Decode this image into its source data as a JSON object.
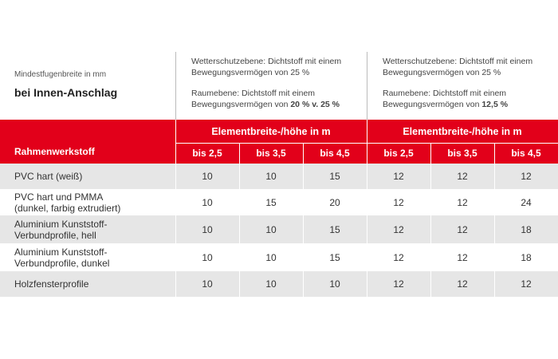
{
  "header": {
    "caption": "Mindestfugenbreite in mm",
    "title": "bei Innen-Anschlag"
  },
  "groups": [
    {
      "line1": "Wetterschutzebene: Dichtstoff mit einem Bewegungsvermögen von 25 %",
      "line2": "Raumebene: Dichtstoff mit einem Bewegungsvermögen von",
      "line2_bold": "20 % v. 25 %",
      "heading": "Elementbreite-/höhe in m",
      "columns": [
        "bis 2,5",
        "bis 3,5",
        "bis 4,5"
      ]
    },
    {
      "line1": "Wetterschutzebene: Dichtstoff mit einem Bewegungsvermögen von 25 %",
      "line2": "Raumebene: Dichtstoff mit einem Bewegungsvermögen von",
      "line2_bold": "12,5 %",
      "heading": "Elementbreite-/höhe in m",
      "columns": [
        "bis 2,5",
        "bis 3,5",
        "bis 4,5"
      ]
    }
  ],
  "table": {
    "label_header": "Rahmenwerkstoff",
    "rows": [
      {
        "label": [
          "PVC hart (weiß)"
        ],
        "values": [
          10,
          10,
          15,
          12,
          12,
          12
        ]
      },
      {
        "label": [
          "PVC hart und PMMA",
          "(dunkel, farbig extrudiert)"
        ],
        "values": [
          10,
          15,
          20,
          12,
          12,
          24
        ]
      },
      {
        "label": [
          "Aluminium Kunststoff-",
          "Verbundprofile, hell"
        ],
        "values": [
          10,
          10,
          15,
          12,
          12,
          18
        ]
      },
      {
        "label": [
          "Aluminium Kunststoff-",
          "Verbundprofile, dunkel"
        ],
        "values": [
          10,
          10,
          15,
          12,
          12,
          18
        ]
      },
      {
        "label": [
          "Holzfensterprofile"
        ],
        "values": [
          10,
          10,
          10,
          12,
          12,
          12
        ]
      }
    ]
  }
}
